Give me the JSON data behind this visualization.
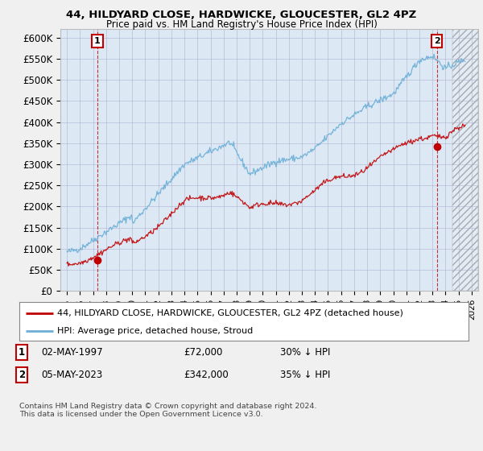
{
  "title1": "44, HILDYARD CLOSE, HARDWICKE, GLOUCESTER, GL2 4PZ",
  "title2": "Price paid vs. HM Land Registry's House Price Index (HPI)",
  "ylabel_ticks": [
    "£0",
    "£50K",
    "£100K",
    "£150K",
    "£200K",
    "£250K",
    "£300K",
    "£350K",
    "£400K",
    "£450K",
    "£500K",
    "£550K",
    "£600K"
  ],
  "ytick_values": [
    0,
    50000,
    100000,
    150000,
    200000,
    250000,
    300000,
    350000,
    400000,
    450000,
    500000,
    550000,
    600000
  ],
  "xlim": [
    1994.5,
    2026.5
  ],
  "ylim": [
    0,
    620000
  ],
  "hatch_start": 2024.5,
  "legend_line1": "44, HILDYARD CLOSE, HARDWICKE, GLOUCESTER, GL2 4PZ (detached house)",
  "legend_line2": "HPI: Average price, detached house, Stroud",
  "sale1_date": "02-MAY-1997",
  "sale1_price": "£72,000",
  "sale1_hpi": "30% ↓ HPI",
  "sale1_x": 1997.33,
  "sale1_y": 72000,
  "sale2_date": "05-MAY-2023",
  "sale2_price": "£342,000",
  "sale2_hpi": "35% ↓ HPI",
  "sale2_x": 2023.33,
  "sale2_y": 342000,
  "copyright_text": "Contains HM Land Registry data © Crown copyright and database right 2024.\nThis data is licensed under the Open Government Licence v3.0.",
  "hpi_color": "#6baed6",
  "price_color": "#c00000",
  "background_color": "#f0f0f0",
  "plot_bg": "#dce9f5",
  "grid_color": "#aaaacc"
}
